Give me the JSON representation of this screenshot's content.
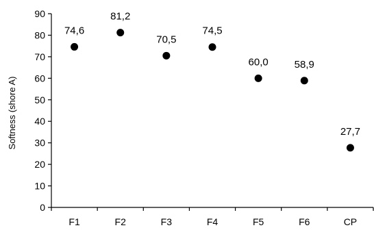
{
  "chart_data": {
    "type": "scatter",
    "title": "",
    "xlabel": "",
    "ylabel": "Softness (shore A)",
    "ylim": [
      0,
      90
    ],
    "yticks": [
      0,
      10,
      20,
      30,
      40,
      50,
      60,
      70,
      80,
      90
    ],
    "categories": [
      "F1",
      "F2",
      "F3",
      "F4",
      "F5",
      "F6",
      "CP"
    ],
    "values": [
      74.6,
      81.2,
      70.5,
      74.5,
      60.0,
      58.9,
      27.7
    ],
    "value_labels": [
      "74,6",
      "81,2",
      "70,5",
      "74,5",
      "60,0",
      "58,9",
      "27,7"
    ],
    "marker_color": "#000000",
    "grid": false,
    "legend": "none"
  }
}
